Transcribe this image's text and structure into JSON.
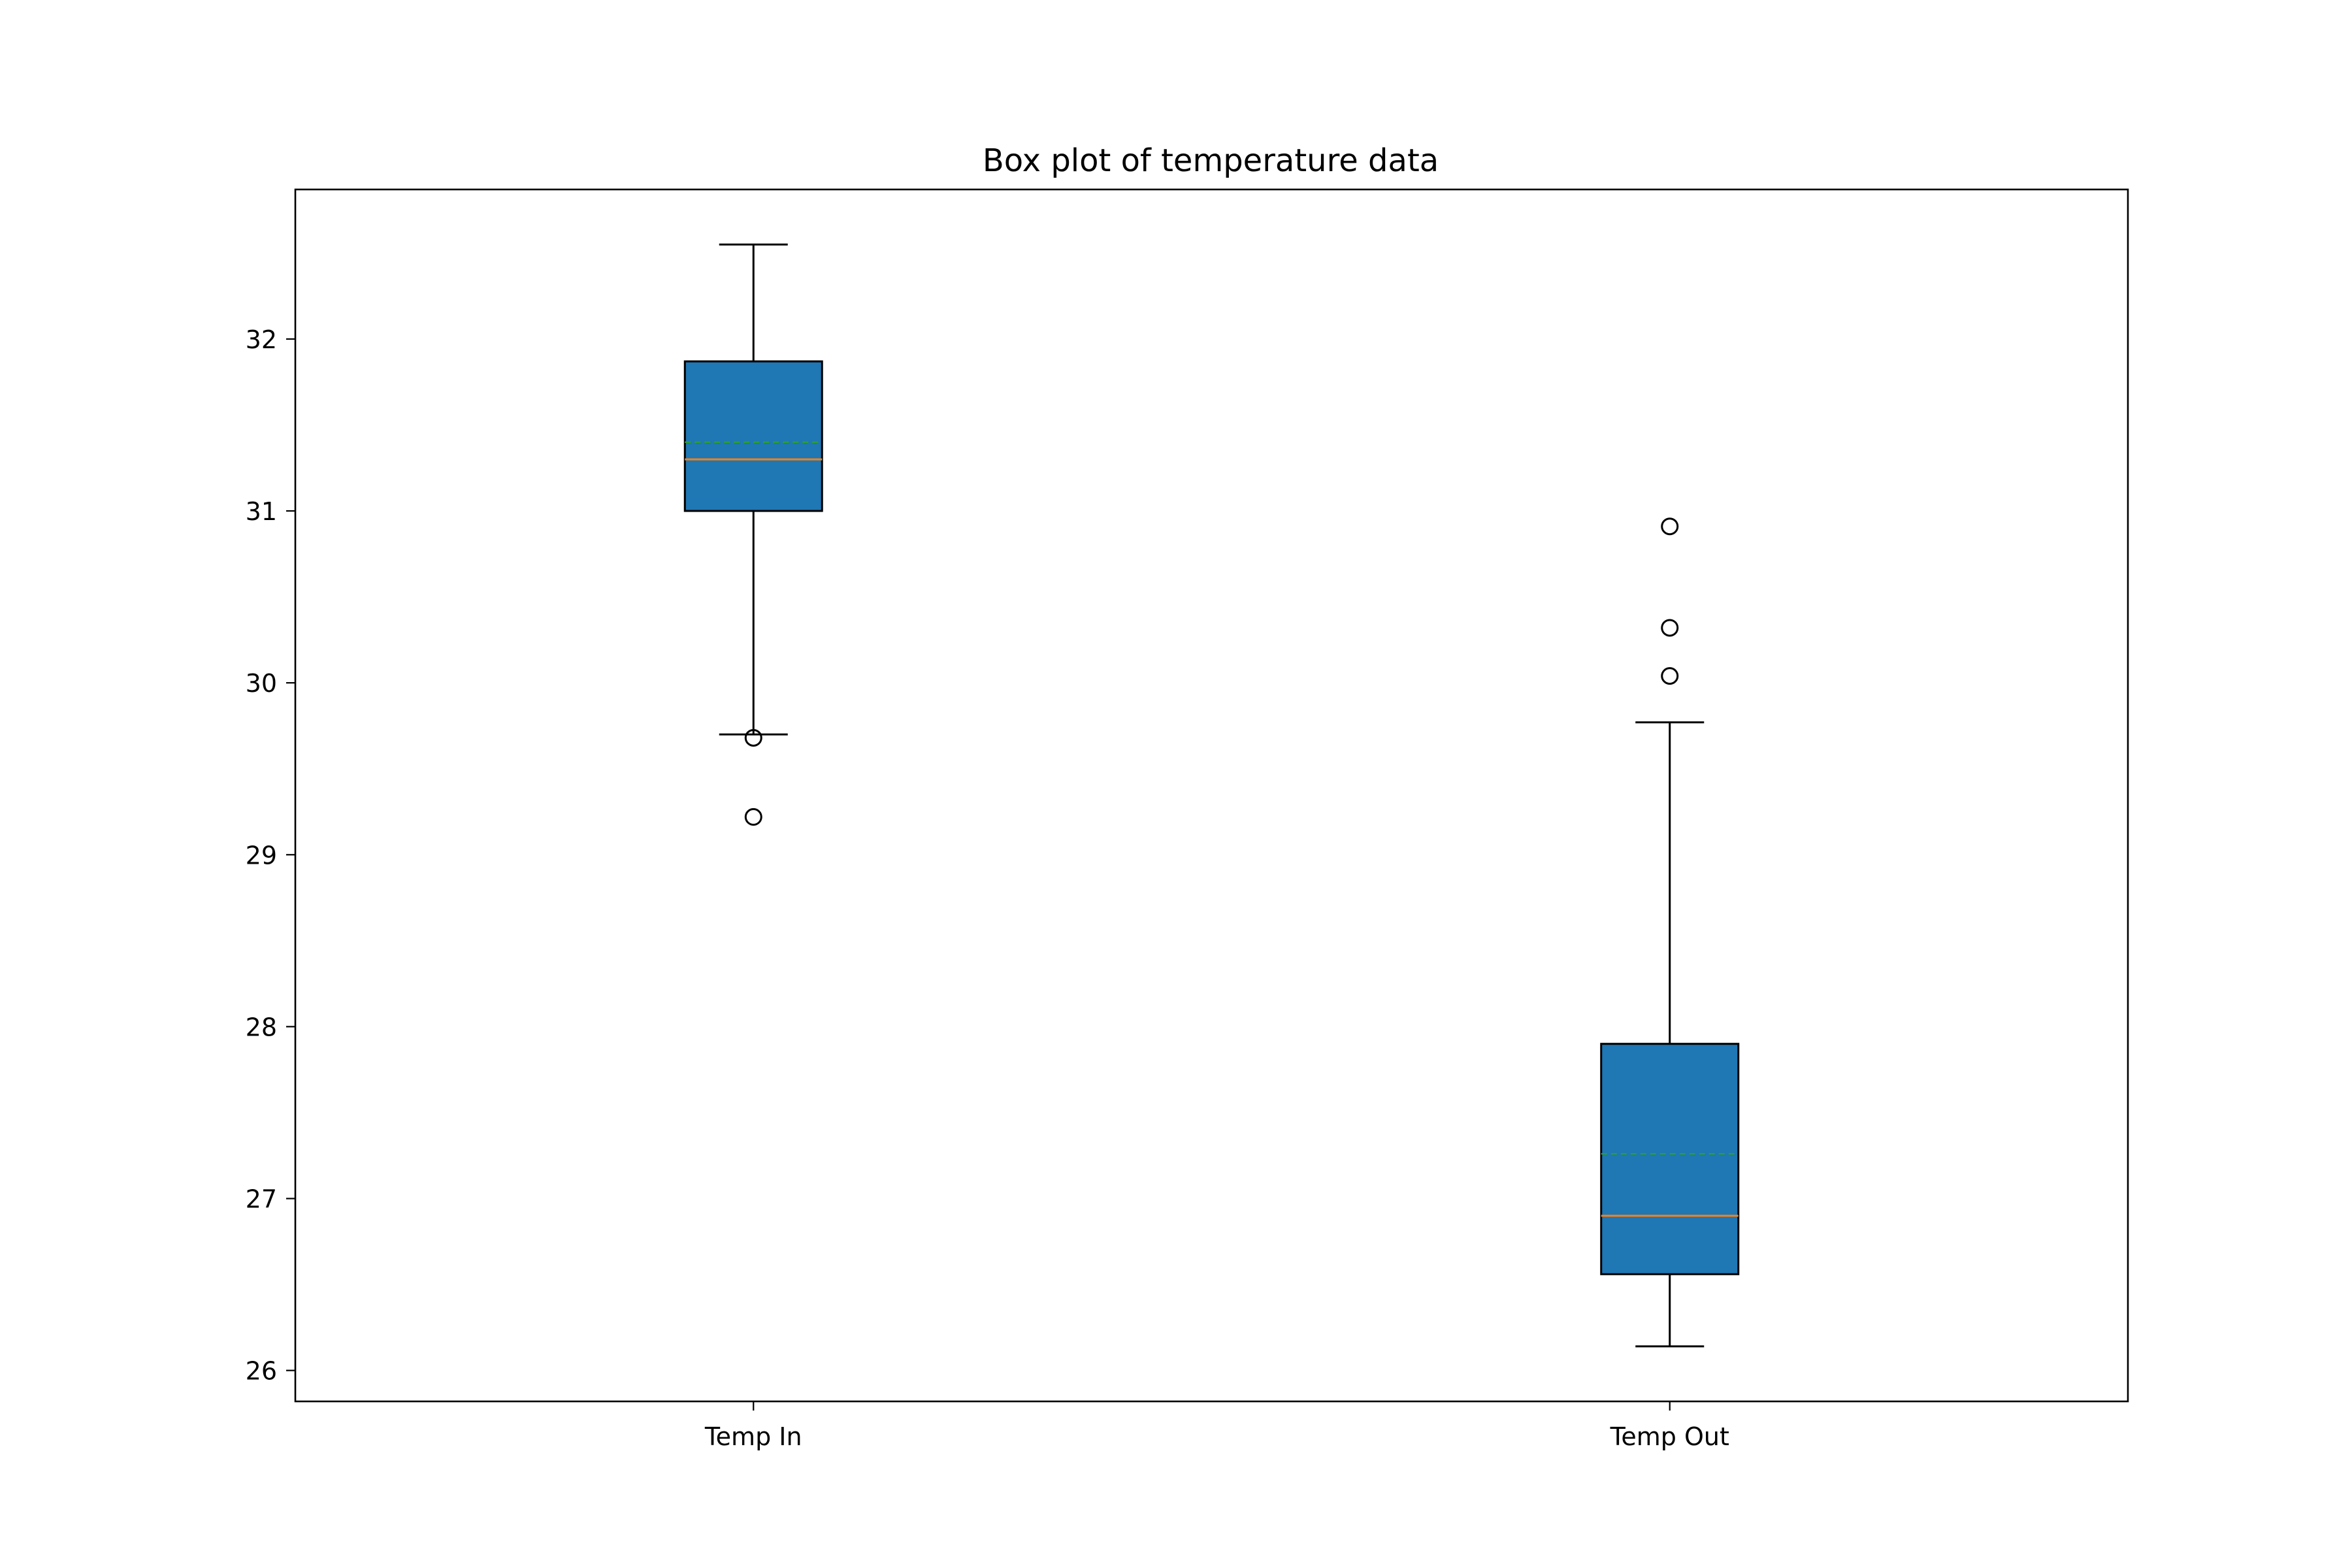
{
  "chart_data": {
    "type": "box",
    "title": "Box plot of temperature data",
    "xlabel": "",
    "ylabel": "",
    "categories": [
      "Temp In",
      "Temp Out"
    ],
    "ylim": [
      25.82,
      32.87
    ],
    "yticks": [
      26,
      27,
      28,
      29,
      30,
      31,
      32
    ],
    "grid": false,
    "legend": "none",
    "boxes": [
      {
        "category": "Temp In",
        "whisker_low": 29.7,
        "q1": 31.0,
        "median": 31.3,
        "mean": 31.4,
        "q3": 31.87,
        "whisker_high": 32.55,
        "outliers": [
          29.68,
          29.22
        ]
      },
      {
        "category": "Temp Out",
        "whisker_low": 26.14,
        "q1": 26.56,
        "median": 26.9,
        "mean": 27.26,
        "q3": 27.9,
        "whisker_high": 29.77,
        "outliers": [
          30.91,
          30.32,
          30.04
        ]
      }
    ],
    "colors": {
      "box_fill": "#1f77b4",
      "median_line": "#ff7f0e",
      "mean_line": "#2ca02c",
      "edge": "#000000"
    }
  }
}
